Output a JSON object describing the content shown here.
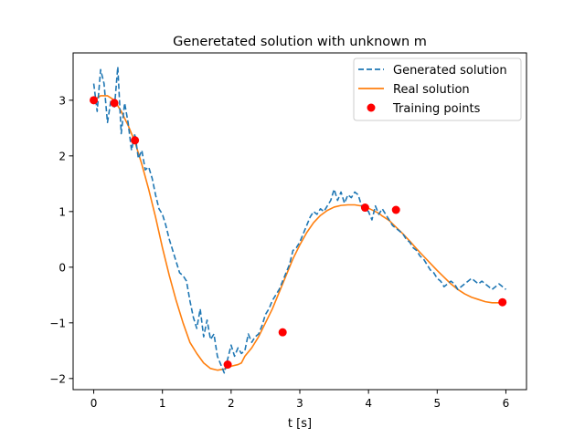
{
  "chart_data": {
    "type": "line",
    "title": "Generetated solution with unknown m",
    "xlabel": "t [s]",
    "ylabel": "",
    "xlim": [
      -0.3,
      6.3
    ],
    "ylim": [
      -2.2,
      3.85
    ],
    "xticks": [
      0,
      1,
      2,
      3,
      4,
      5,
      6
    ],
    "yticks": [
      -2,
      -1,
      0,
      1,
      2,
      3
    ],
    "grid": false,
    "legend_position": "top-right",
    "series": [
      {
        "name": "Generated solution",
        "style": "dashed",
        "color": "#1f77b4",
        "x": [
          0,
          0.05,
          0.1,
          0.15,
          0.2,
          0.25,
          0.3,
          0.35,
          0.4,
          0.45,
          0.5,
          0.55,
          0.6,
          0.65,
          0.7,
          0.75,
          0.8,
          0.85,
          0.9,
          0.95,
          1.0,
          1.05,
          1.1,
          1.15,
          1.2,
          1.25,
          1.3,
          1.35,
          1.4,
          1.45,
          1.5,
          1.55,
          1.6,
          1.65,
          1.7,
          1.75,
          1.8,
          1.85,
          1.9,
          1.95,
          2.0,
          2.05,
          2.1,
          2.15,
          2.2,
          2.25,
          2.3,
          2.35,
          2.4,
          2.45,
          2.5,
          2.55,
          2.6,
          2.65,
          2.7,
          2.75,
          2.8,
          2.85,
          2.9,
          2.95,
          3.0,
          3.05,
          3.1,
          3.15,
          3.2,
          3.25,
          3.3,
          3.35,
          3.4,
          3.45,
          3.5,
          3.55,
          3.6,
          3.65,
          3.7,
          3.75,
          3.8,
          3.85,
          3.9,
          3.95,
          4.0,
          4.05,
          4.1,
          4.15,
          4.2,
          4.25,
          4.3,
          4.35,
          4.4,
          4.45,
          4.5,
          4.55,
          4.6,
          4.65,
          4.7,
          4.75,
          4.8,
          4.85,
          4.9,
          4.95,
          5.0,
          5.05,
          5.1,
          5.15,
          5.2,
          5.25,
          5.3,
          5.35,
          5.4,
          5.45,
          5.5,
          5.55,
          5.6,
          5.65,
          5.7,
          5.75,
          5.8,
          5.85,
          5.9,
          5.95,
          6.0
        ],
        "values": [
          3.3,
          2.8,
          3.55,
          3.3,
          2.6,
          3.0,
          2.85,
          3.6,
          2.4,
          2.95,
          2.6,
          2.1,
          2.4,
          1.95,
          2.1,
          1.75,
          1.8,
          1.6,
          1.3,
          1.05,
          0.95,
          0.75,
          0.5,
          0.3,
          0.1,
          -0.1,
          -0.15,
          -0.25,
          -0.6,
          -0.9,
          -1.1,
          -0.75,
          -1.25,
          -0.95,
          -1.3,
          -1.2,
          -1.6,
          -1.75,
          -1.9,
          -1.65,
          -1.4,
          -1.6,
          -1.45,
          -1.55,
          -1.5,
          -1.2,
          -1.35,
          -1.25,
          -1.2,
          -1.05,
          -0.85,
          -0.75,
          -0.6,
          -0.5,
          -0.4,
          -0.25,
          -0.1,
          0.05,
          0.3,
          0.35,
          0.45,
          0.6,
          0.75,
          0.9,
          1.0,
          0.95,
          1.05,
          1.0,
          1.1,
          1.2,
          1.4,
          1.2,
          1.35,
          1.15,
          1.3,
          1.25,
          1.35,
          1.3,
          1.1,
          1.05,
          1.0,
          0.85,
          1.1,
          0.95,
          1.05,
          0.95,
          0.85,
          0.75,
          0.7,
          0.65,
          0.6,
          0.5,
          0.45,
          0.35,
          0.3,
          0.2,
          0.15,
          0.05,
          -0.05,
          -0.1,
          -0.2,
          -0.25,
          -0.35,
          -0.3,
          -0.25,
          -0.3,
          -0.4,
          -0.35,
          -0.3,
          -0.25,
          -0.2,
          -0.25,
          -0.3,
          -0.25,
          -0.3,
          -0.35,
          -0.4,
          -0.35,
          -0.3,
          -0.35,
          -0.4
        ]
      },
      {
        "name": "Real solution",
        "style": "solid",
        "color": "#ff7f0e",
        "x": [
          0,
          0.1,
          0.2,
          0.3,
          0.4,
          0.5,
          0.6,
          0.7,
          0.8,
          0.9,
          1.0,
          1.1,
          1.2,
          1.3,
          1.4,
          1.5,
          1.6,
          1.7,
          1.8,
          1.9,
          2.0,
          2.1,
          2.15,
          2.2,
          2.3,
          2.4,
          2.5,
          2.6,
          2.7,
          2.8,
          2.9,
          3.0,
          3.1,
          3.2,
          3.3,
          3.4,
          3.5,
          3.6,
          3.7,
          3.8,
          3.9,
          4.0,
          4.1,
          4.15,
          4.2,
          4.3,
          4.4,
          4.5,
          4.6,
          4.7,
          4.8,
          4.9,
          5.0,
          5.1,
          5.2,
          5.3,
          5.4,
          5.5,
          5.6,
          5.7,
          5.8,
          5.9,
          6.0
        ],
        "values": [
          3.0,
          3.08,
          3.08,
          3.0,
          2.8,
          2.55,
          2.25,
          1.85,
          1.4,
          0.9,
          0.35,
          -0.15,
          -0.6,
          -1.0,
          -1.35,
          -1.55,
          -1.72,
          -1.82,
          -1.85,
          -1.83,
          -1.78,
          -1.75,
          -1.72,
          -1.6,
          -1.45,
          -1.25,
          -1.0,
          -0.75,
          -0.45,
          -0.15,
          0.15,
          0.4,
          0.62,
          0.8,
          0.93,
          1.02,
          1.08,
          1.11,
          1.12,
          1.12,
          1.1,
          1.06,
          1.0,
          0.97,
          0.92,
          0.84,
          0.72,
          0.6,
          0.47,
          0.33,
          0.2,
          0.07,
          -0.06,
          -0.18,
          -0.3,
          -0.4,
          -0.48,
          -0.54,
          -0.58,
          -0.62,
          -0.64,
          -0.64,
          -0.65
        ]
      },
      {
        "name": "Training points",
        "style": "markers",
        "color": "#ff0000",
        "x": [
          0.0,
          0.3,
          0.6,
          1.95,
          2.75,
          3.95,
          4.4,
          5.95
        ],
        "values": [
          3.0,
          2.95,
          2.28,
          -1.75,
          -1.17,
          1.07,
          1.03,
          -0.63
        ]
      }
    ]
  }
}
